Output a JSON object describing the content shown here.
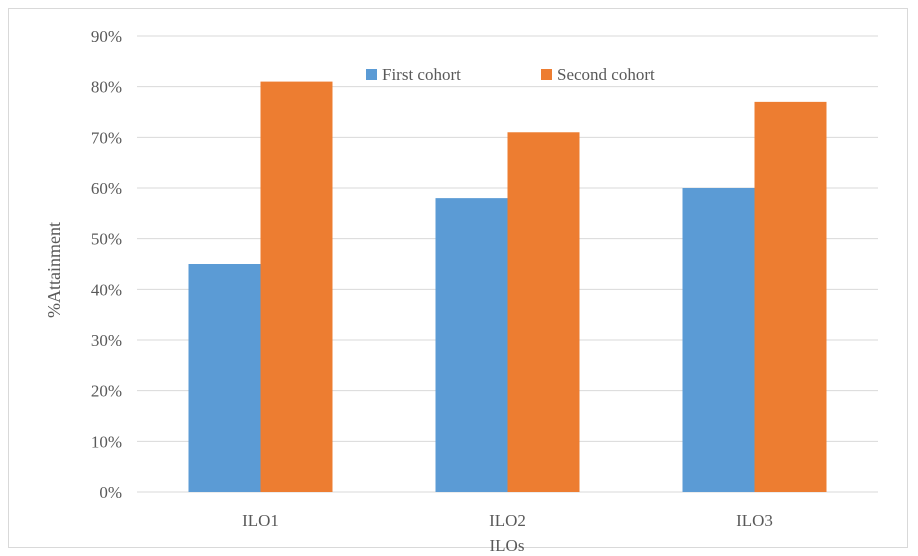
{
  "chart_data": {
    "type": "bar",
    "categories": [
      "ILO1",
      "ILO2",
      "ILO3"
    ],
    "series": [
      {
        "name": "First cohort",
        "values": [
          45,
          58,
          60
        ],
        "color": "#5b9bd5"
      },
      {
        "name": "Second cohort",
        "values": [
          81,
          71,
          77
        ],
        "color": "#ed7d31"
      }
    ],
    "xlabel": "ILOs",
    "ylabel": "%Attainment",
    "ylim": [
      0,
      90
    ],
    "yticks": [
      0,
      10,
      20,
      30,
      40,
      50,
      60,
      70,
      80,
      90
    ],
    "ytick_suffix": "%",
    "grid": true,
    "legend_position": "top-center",
    "gridline_color": "#d9d9d9"
  }
}
